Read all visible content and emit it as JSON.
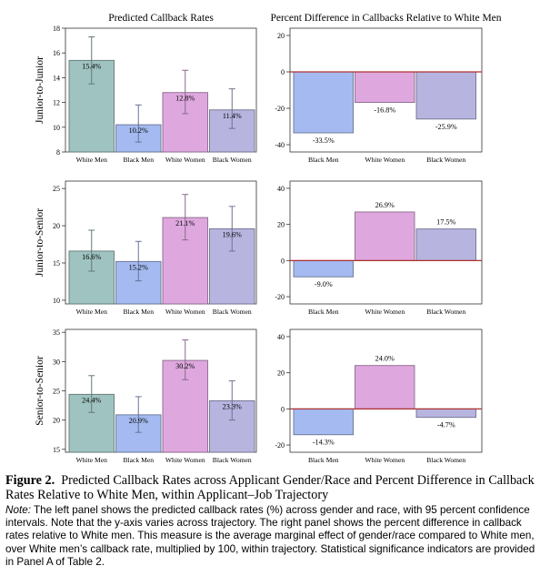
{
  "caption": {
    "figure_label": "Figure 2.",
    "title": "Predicted Callback Rates across Applicant Gender/Race and Percent Difference in Callback Rates Relative to White Men, within Applicant–Job Trajectory",
    "note_label": "Note:",
    "note_text": "The left panel shows the predicted callback rates (%) across gender and race, with 95 percent confidence intervals. Note that the y-axis varies across trajectory. The right panel shows the percent difference in callback rates relative to White men. This measure is the average marginal effect of gender/race compared to White men, over White men’s callback rate, multiplied by 100, within trajectory. Statistical significance indicators are provided in Panel A of Table 2."
  },
  "colors": {
    "White Men": "#9fc3c0",
    "Black Men": "#a4baf0",
    "White Women": "#dea8de",
    "Black Women": "#b7b5e0"
  },
  "chart_data": [
    {
      "type": "bar",
      "title": "Predicted Callback Rates",
      "ylabel": "Junior-to-Junior",
      "categories": [
        "White Men",
        "Black Men",
        "White Women",
        "Black Women"
      ],
      "values": [
        15.4,
        10.2,
        12.8,
        11.4
      ],
      "value_labels": [
        "15.4%",
        "10.2%",
        "12.8%",
        "11.4%"
      ],
      "ci_low": [
        13.5,
        8.8,
        11.1,
        9.9
      ],
      "ci_high": [
        17.3,
        11.8,
        14.6,
        13.1
      ],
      "ylim": [
        8,
        18
      ],
      "yticks": [
        8,
        10,
        12,
        14,
        16,
        18
      ]
    },
    {
      "type": "bar",
      "title": "Percent Difference in Callbacks Relative to White Men",
      "categories": [
        "Black Men",
        "White Women",
        "Black Women"
      ],
      "values": [
        -33.5,
        -16.8,
        -25.9
      ],
      "value_labels": [
        "-33.5%",
        "-16.8%",
        "-25.9%"
      ],
      "ylim": [
        -44,
        24
      ],
      "yticks": [
        -40,
        -20,
        0,
        20
      ]
    },
    {
      "type": "bar",
      "ylabel": "Junior-to-Senior",
      "categories": [
        "White Men",
        "Black Men",
        "White Women",
        "Black Women"
      ],
      "values": [
        16.6,
        15.2,
        21.1,
        19.6
      ],
      "value_labels": [
        "16.6%",
        "15.2%",
        "21.1%",
        "19.6%"
      ],
      "ci_low": [
        13.9,
        12.6,
        18.1,
        16.6
      ],
      "ci_high": [
        19.4,
        17.9,
        24.2,
        22.6
      ],
      "ylim": [
        9.5,
        26
      ],
      "yticks": [
        10,
        15,
        20,
        25
      ]
    },
    {
      "type": "bar",
      "categories": [
        "Black Men",
        "White Women",
        "Black Women"
      ],
      "values": [
        -9.0,
        26.9,
        17.5
      ],
      "value_labels": [
        "-9.0%",
        "26.9%",
        "17.5%"
      ],
      "ylim": [
        -24,
        44
      ],
      "yticks": [
        -20,
        0,
        20,
        40
      ]
    },
    {
      "type": "bar",
      "ylabel": "Senior-to-Senior",
      "categories": [
        "White Men",
        "Black Men",
        "White Women",
        "Black Women"
      ],
      "values": [
        24.4,
        20.9,
        30.2,
        23.3
      ],
      "value_labels": [
        "24.4%",
        "20.9%",
        "30.2%",
        "23.3%"
      ],
      "ci_low": [
        21.3,
        17.9,
        26.9,
        20.0
      ],
      "ci_high": [
        27.6,
        24.0,
        33.7,
        26.7
      ],
      "ylim": [
        14.5,
        35.5
      ],
      "yticks": [
        15,
        20,
        25,
        30,
        35
      ]
    },
    {
      "type": "bar",
      "categories": [
        "Black Men",
        "White Women",
        "Black Women"
      ],
      "values": [
        -14.3,
        24.0,
        -4.7
      ],
      "value_labels": [
        "-14.3%",
        "24.0%",
        "-4.7%"
      ],
      "ylim": [
        -24,
        44
      ],
      "yticks": [
        -20,
        0,
        20,
        40
      ]
    }
  ]
}
